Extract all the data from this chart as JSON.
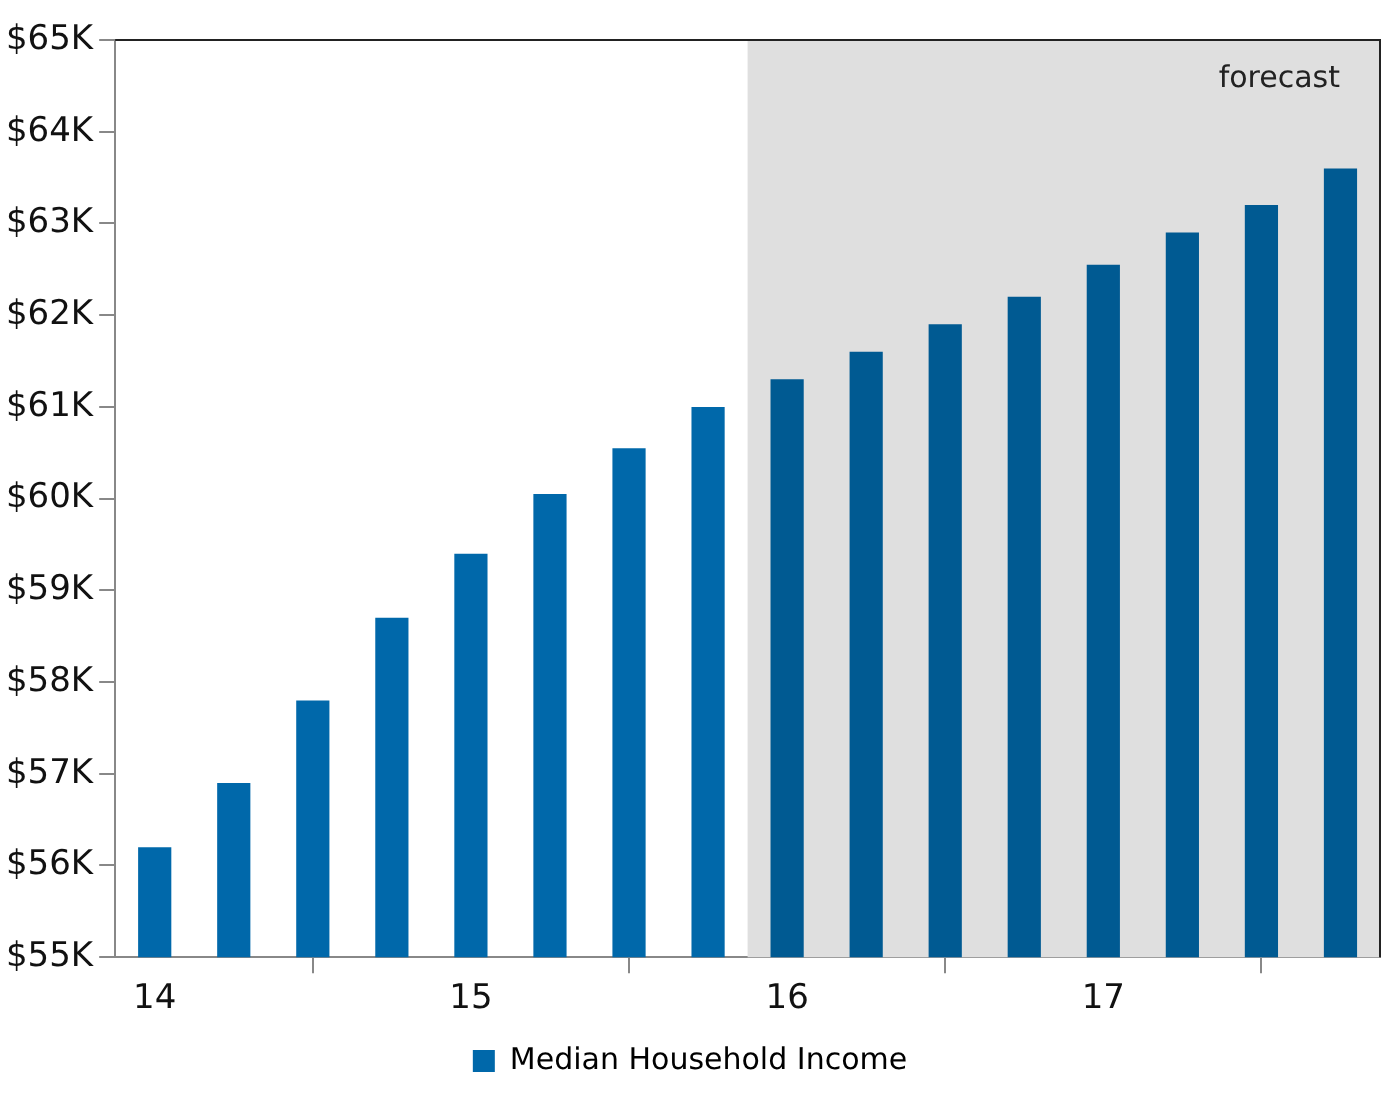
{
  "chart_data": {
    "type": "bar",
    "x": [
      14,
      14.25,
      14.5,
      14.75,
      15,
      15.25,
      15.5,
      15.75,
      16,
      16.25,
      16.5,
      16.75,
      17,
      17.25,
      17.5,
      17.75
    ],
    "series": [
      {
        "name": "Median Household Income",
        "color": "#0068aa",
        "colors": [
          "#0068aa",
          "#0068aa",
          "#0068aa",
          "#0068aa",
          "#0068aa",
          "#0068aa",
          "#0068aa",
          "#0068aa",
          "#005a92",
          "#005a92",
          "#005a92",
          "#005a92",
          "#005a92",
          "#005a92",
          "#005a92",
          "#005a92"
        ],
        "values": [
          56200,
          56900,
          57800,
          58700,
          59400,
          60050,
          60550,
          61000,
          61300,
          61600,
          61900,
          62200,
          62550,
          62900,
          63200,
          63600
        ]
      }
    ],
    "xlim": [
      13.875,
      17.875
    ],
    "xticks": [
      14,
      15,
      16,
      17
    ],
    "ylim": [
      55000,
      65000
    ],
    "yticks": [
      {
        "value": 55000,
        "label": "$55K"
      },
      {
        "value": 56000,
        "label": "$56K"
      },
      {
        "value": 57000,
        "label": "$57K"
      },
      {
        "value": 58000,
        "label": "$58K"
      },
      {
        "value": 59000,
        "label": "$59K"
      },
      {
        "value": 60000,
        "label": "$60K"
      },
      {
        "value": 61000,
        "label": "$61K"
      },
      {
        "value": 62000,
        "label": "$62K"
      },
      {
        "value": 63000,
        "label": "$63K"
      },
      {
        "value": 64000,
        "label": "$64K"
      },
      {
        "value": 65000,
        "label": "$65K"
      }
    ],
    "bands": [
      {
        "axis": "x",
        "from": 15.875,
        "to": 17.875,
        "label": "forecast",
        "color": "#dfdfdf"
      }
    ],
    "grid": false,
    "legend": "bottom"
  }
}
